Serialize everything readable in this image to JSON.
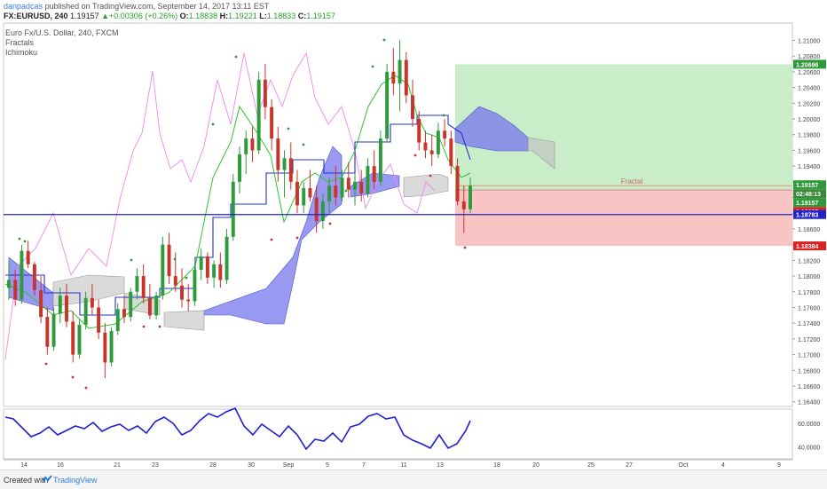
{
  "header": {
    "author": "danpadcas",
    "published": "published on TradingView.com, September 14, 2017 13:11 EST",
    "symbol": "FX:EURUSD, 240",
    "last": "1.19157",
    "change": "+0.00306 (+0.26%)",
    "o_label": "O:",
    "o": "1.18838",
    "h_label": "H:",
    "h": "1.19221",
    "l_label": "L:",
    "l": "1.18833",
    "c_label": "C:",
    "c": "1.19157"
  },
  "legend": [
    "Euro Fx/U.S. Dollar, 240, FXCM",
    "Fractals",
    "Ichimoku"
  ],
  "footer": {
    "created": "Created with",
    "brand": "TradingView"
  },
  "colors": {
    "up": "#2e9a3a",
    "down": "#c8332a",
    "tenkan": "#2bc52b",
    "kijun": "#2233cc",
    "chikou": "#ee88ee",
    "cloud_bull": "#7777ee",
    "cloud_bear": "#bbbbbb",
    "rsi": "#1f1fcc",
    "profit": "#c9ecc9",
    "loss": "#f8c4c4"
  },
  "chart_data": {
    "type": "candlestick",
    "y_ticks": [
      "1.21000",
      "1.20800",
      "1.20600",
      "1.20400",
      "1.20200",
      "1.20000",
      "1.19800",
      "1.19600",
      "1.19400",
      "1.19200",
      "1.19000",
      "1.18800",
      "1.18600",
      "1.18400",
      "1.18200",
      "1.18000",
      "1.17800",
      "1.17600",
      "1.17400",
      "1.17200",
      "1.17000",
      "1.16800",
      "1.16600",
      "1.16400"
    ],
    "ylim": [
      1.1634,
      1.2122
    ],
    "x_ticks": [
      "14",
      "16",
      "21",
      "23",
      "28",
      "30",
      "Sep",
      "5",
      "7",
      "11",
      "13",
      "18",
      "20",
      "25",
      "27",
      "Oct",
      "4",
      "9"
    ],
    "price_labels": {
      "target": "1.20696",
      "current": "1.19157",
      "countdown": "02:48:13",
      "current2": "1.19157",
      "entry": "1.19097",
      "hline": "1.18783",
      "stop": "1.18384"
    },
    "horizontal_line": 1.18783,
    "position": {
      "entry": 1.19097,
      "target": 1.20696,
      "stop": 1.18384
    },
    "annotation": "Fractal",
    "candles": [
      [
        1.1785,
        1.182,
        1.177,
        1.1795
      ],
      [
        1.1795,
        1.1808,
        1.1762,
        1.177
      ],
      [
        1.177,
        1.184,
        1.1765,
        1.1832
      ],
      [
        1.1832,
        1.1845,
        1.181,
        1.1815
      ],
      [
        1.1815,
        1.1818,
        1.1775,
        1.1782
      ],
      [
        1.1782,
        1.18,
        1.174,
        1.1748
      ],
      [
        1.1748,
        1.176,
        1.17,
        1.171
      ],
      [
        1.171,
        1.176,
        1.1705,
        1.1752
      ],
      [
        1.1752,
        1.1785,
        1.174,
        1.1775
      ],
      [
        1.1775,
        1.179,
        1.1735,
        1.1742
      ],
      [
        1.1742,
        1.1755,
        1.169,
        1.17
      ],
      [
        1.17,
        1.1745,
        1.1695,
        1.1738
      ],
      [
        1.1738,
        1.178,
        1.1732,
        1.1772
      ],
      [
        1.1772,
        1.179,
        1.175,
        1.176
      ],
      [
        1.176,
        1.177,
        1.172,
        1.1728
      ],
      [
        1.1728,
        1.174,
        1.167,
        1.169
      ],
      [
        1.169,
        1.1735,
        1.1685,
        1.173
      ],
      [
        1.173,
        1.1765,
        1.1725,
        1.1758
      ],
      [
        1.1758,
        1.1775,
        1.174,
        1.1748
      ],
      [
        1.1748,
        1.1785,
        1.1742,
        1.178
      ],
      [
        1.178,
        1.181,
        1.177,
        1.18
      ],
      [
        1.18,
        1.1815,
        1.1765,
        1.1772
      ],
      [
        1.1772,
        1.179,
        1.1745,
        1.175
      ],
      [
        1.175,
        1.178,
        1.1745,
        1.1775
      ],
      [
        1.1775,
        1.185,
        1.177,
        1.184
      ],
      [
        1.184,
        1.1855,
        1.179,
        1.18
      ],
      [
        1.18,
        1.183,
        1.178,
        1.1788
      ],
      [
        1.1788,
        1.181,
        1.176,
        1.177
      ],
      [
        1.177,
        1.179,
        1.1755,
        1.1768
      ],
      [
        1.1768,
        1.1815,
        1.1762,
        1.1808
      ],
      [
        1.1808,
        1.1835,
        1.1795,
        1.1825
      ],
      [
        1.1825,
        1.183,
        1.179,
        1.1798
      ],
      [
        1.1798,
        1.182,
        1.1785,
        1.1815
      ],
      [
        1.1815,
        1.183,
        1.1785,
        1.1795
      ],
      [
        1.1795,
        1.186,
        1.179,
        1.185
      ],
      [
        1.185,
        1.193,
        1.1845,
        1.192
      ],
      [
        1.192,
        1.1965,
        1.1905,
        1.1955
      ],
      [
        1.1955,
        1.1985,
        1.193,
        1.1975
      ],
      [
        1.1975,
        1.199,
        1.1945,
        1.196
      ],
      [
        1.196,
        1.206,
        1.1955,
        1.205
      ],
      [
        1.205,
        1.207,
        1.2,
        1.2015
      ],
      [
        1.2015,
        1.2025,
        1.196,
        1.1975
      ],
      [
        1.1975,
        1.199,
        1.192,
        1.1935
      ],
      [
        1.1935,
        1.196,
        1.19,
        1.195
      ],
      [
        1.195,
        1.197,
        1.191,
        1.192
      ],
      [
        1.192,
        1.1935,
        1.188,
        1.189
      ],
      [
        1.189,
        1.192,
        1.188,
        1.1912
      ],
      [
        1.1912,
        1.1935,
        1.1895,
        1.19
      ],
      [
        1.19,
        1.1915,
        1.1855,
        1.187
      ],
      [
        1.187,
        1.1905,
        1.186,
        1.1895
      ],
      [
        1.1895,
        1.1925,
        1.188,
        1.1915
      ],
      [
        1.1915,
        1.194,
        1.189,
        1.19
      ],
      [
        1.19,
        1.1935,
        1.1895,
        1.1925
      ],
      [
        1.1925,
        1.1945,
        1.19,
        1.191
      ],
      [
        1.191,
        1.193,
        1.189,
        1.192
      ],
      [
        1.192,
        1.1935,
        1.1895,
        1.1905
      ],
      [
        1.1905,
        1.195,
        1.19,
        1.194
      ],
      [
        1.194,
        1.196,
        1.191,
        1.192
      ],
      [
        1.192,
        1.1985,
        1.1915,
        1.1975
      ],
      [
        1.1975,
        1.207,
        1.197,
        1.206
      ],
      [
        1.206,
        1.209,
        1.203,
        1.2045
      ],
      [
        1.2045,
        1.21,
        1.201,
        1.2075
      ],
      [
        1.2075,
        1.2085,
        1.202,
        1.203
      ],
      [
        1.203,
        1.205,
        1.199,
        1.2
      ],
      [
        1.2,
        1.201,
        1.196,
        1.197
      ],
      [
        1.197,
        1.1985,
        1.195,
        1.196
      ],
      [
        1.196,
        1.198,
        1.194,
        1.1955
      ],
      [
        1.1955,
        1.1995,
        1.195,
        1.1985
      ],
      [
        1.1985,
        1.2,
        1.1965,
        1.1975
      ],
      [
        1.1975,
        1.1985,
        1.193,
        1.194
      ],
      [
        1.194,
        1.195,
        1.189,
        1.1895
      ],
      [
        1.1895,
        1.1915,
        1.1855,
        1.1885
      ],
      [
        1.1885,
        1.1925,
        1.188,
        1.1915
      ]
    ],
    "rsi_ticks": [
      "60.0000",
      "40.0000"
    ],
    "rsi_ylim": [
      30,
      72
    ]
  }
}
